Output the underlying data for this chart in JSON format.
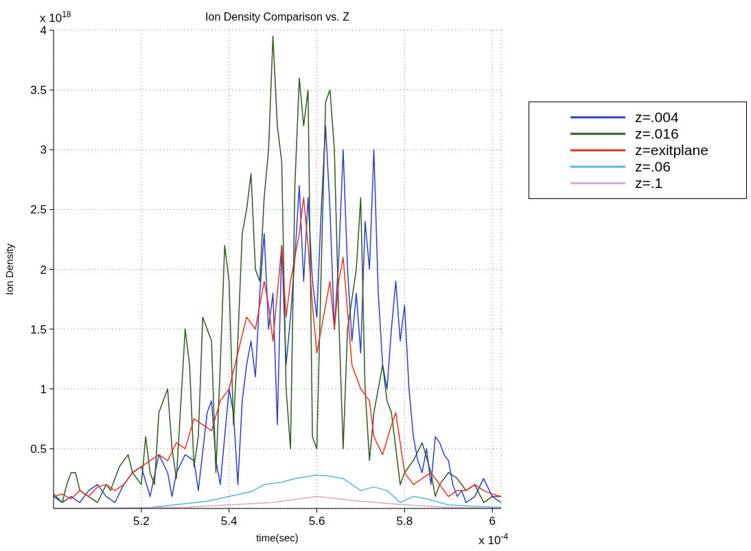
{
  "chart_data": {
    "type": "line",
    "title": "Ion Density Comparison vs. Z",
    "xlabel": "time(sec)",
    "ylabel": "Ion Density",
    "annotations": [
      "x 10$^{18}$",
      "x 10$^{-4}$"
    ],
    "xlim": [
      5.0,
      6.02
    ],
    "xticks": [
      5.2,
      5.4,
      5.6,
      5.8,
      6
    ],
    "ylim": [
      0,
      4
    ],
    "yticks": [
      0.5,
      1,
      1.5,
      2,
      2.5,
      3,
      3.5,
      4
    ],
    "grid": true,
    "legend": "right",
    "marker": "none",
    "line_style": "solid",
    "series": [
      {
        "name": "z=.004",
        "color": "#2a3fd0",
        "x": [
          5.0,
          5.02,
          5.04,
          5.06,
          5.08,
          5.1,
          5.12,
          5.14,
          5.16,
          5.18,
          5.2,
          5.22,
          5.24,
          5.26,
          5.27,
          5.28,
          5.3,
          5.32,
          5.33,
          5.35,
          5.36,
          5.37,
          5.38,
          5.4,
          5.41,
          5.42,
          5.43,
          5.44,
          5.45,
          5.46,
          5.47,
          5.48,
          5.49,
          5.5,
          5.51,
          5.52,
          5.53,
          5.54,
          5.55,
          5.56,
          5.57,
          5.58,
          5.59,
          5.6,
          5.61,
          5.62,
          5.63,
          5.64,
          5.65,
          5.66,
          5.67,
          5.68,
          5.69,
          5.7,
          5.71,
          5.72,
          5.73,
          5.74,
          5.75,
          5.76,
          5.77,
          5.78,
          5.79,
          5.8,
          5.81,
          5.82,
          5.83,
          5.84,
          5.85,
          5.86,
          5.87,
          5.88,
          5.89,
          5.9,
          5.91,
          5.92,
          5.93,
          5.94,
          5.96,
          5.98,
          6.0,
          6.02
        ],
        "values": [
          0.1,
          0.05,
          0.1,
          0.05,
          0.15,
          0.2,
          0.1,
          0.05,
          0.2,
          0.3,
          0.35,
          0.1,
          0.45,
          0.3,
          0.1,
          0.3,
          0.45,
          0.4,
          0.15,
          0.8,
          0.9,
          0.4,
          0.2,
          1.0,
          0.8,
          0.2,
          0.9,
          1.2,
          1.4,
          1.1,
          1.8,
          2.3,
          1.5,
          1.8,
          0.7,
          2.2,
          1.2,
          1.6,
          2.1,
          2.7,
          1.9,
          2.6,
          1.9,
          1.6,
          2.5,
          3.2,
          2.5,
          1.5,
          2.1,
          3.0,
          2.0,
          1.4,
          1.8,
          1.3,
          2.4,
          2.0,
          3.0,
          1.8,
          1.2,
          1.0,
          1.5,
          1.9,
          1.4,
          1.7,
          1.0,
          0.6,
          0.4,
          0.3,
          0.5,
          0.2,
          0.6,
          0.55,
          0.45,
          0.4,
          0.2,
          0.1,
          0.15,
          0.05,
          0.1,
          0.25,
          0.1,
          0.05
        ]
      },
      {
        "name": "z=.016",
        "color": "#2f5a1f",
        "x": [
          5.0,
          5.02,
          5.03,
          5.04,
          5.05,
          5.06,
          5.08,
          5.1,
          5.12,
          5.13,
          5.15,
          5.17,
          5.18,
          5.2,
          5.21,
          5.22,
          5.23,
          5.24,
          5.26,
          5.27,
          5.28,
          5.3,
          5.31,
          5.32,
          5.33,
          5.34,
          5.35,
          5.36,
          5.37,
          5.38,
          5.39,
          5.4,
          5.41,
          5.42,
          5.43,
          5.44,
          5.45,
          5.46,
          5.47,
          5.48,
          5.49,
          5.5,
          5.51,
          5.52,
          5.53,
          5.54,
          5.55,
          5.56,
          5.57,
          5.58,
          5.59,
          5.6,
          5.61,
          5.62,
          5.63,
          5.64,
          5.65,
          5.66,
          5.67,
          5.69,
          5.7,
          5.71,
          5.72,
          5.73,
          5.75,
          5.76,
          5.77,
          5.78,
          5.79,
          5.8,
          5.82,
          5.84,
          5.86,
          5.87,
          5.88,
          5.9,
          5.92,
          5.94,
          5.96,
          5.98,
          6.0,
          6.02
        ],
        "values": [
          0.12,
          0.05,
          0.2,
          0.3,
          0.3,
          0.15,
          0.1,
          0.05,
          0.2,
          0.15,
          0.35,
          0.45,
          0.3,
          0.2,
          0.6,
          0.3,
          0.2,
          0.8,
          1.0,
          0.5,
          0.25,
          1.5,
          1.2,
          0.35,
          0.6,
          1.6,
          1.5,
          1.4,
          0.3,
          1.2,
          2.2,
          1.9,
          0.7,
          1.4,
          2.3,
          2.5,
          2.8,
          2.0,
          1.9,
          2.6,
          3.0,
          3.95,
          3.2,
          2.9,
          1.0,
          0.5,
          2.7,
          3.6,
          3.2,
          3.5,
          0.6,
          0.5,
          2.0,
          3.4,
          3.5,
          3.0,
          1.6,
          0.5,
          1.5,
          2.0,
          2.6,
          1.0,
          0.4,
          0.8,
          1.2,
          0.9,
          0.8,
          0.5,
          0.2,
          0.3,
          0.4,
          0.55,
          0.3,
          0.1,
          0.2,
          0.3,
          0.25,
          0.15,
          0.2,
          0.05,
          0.1,
          0.1
        ]
      },
      {
        "name": "z=exitplane",
        "color": "#e8321e",
        "x": [
          5.0,
          5.02,
          5.04,
          5.06,
          5.08,
          5.1,
          5.12,
          5.14,
          5.16,
          5.18,
          5.2,
          5.22,
          5.24,
          5.26,
          5.28,
          5.3,
          5.32,
          5.34,
          5.36,
          5.38,
          5.4,
          5.42,
          5.44,
          5.46,
          5.48,
          5.49,
          5.5,
          5.52,
          5.53,
          5.54,
          5.56,
          5.57,
          5.58,
          5.59,
          5.6,
          5.62,
          5.63,
          5.64,
          5.65,
          5.66,
          5.68,
          5.7,
          5.72,
          5.73,
          5.75,
          5.77,
          5.78,
          5.8,
          5.82,
          5.84,
          5.86,
          5.88,
          5.9,
          5.92,
          5.94,
          5.96,
          5.98,
          6.0,
          6.02
        ],
        "values": [
          0.1,
          0.12,
          0.08,
          0.15,
          0.1,
          0.18,
          0.2,
          0.15,
          0.2,
          0.3,
          0.35,
          0.4,
          0.45,
          0.4,
          0.55,
          0.5,
          0.75,
          0.7,
          0.65,
          0.9,
          1.0,
          1.3,
          1.6,
          1.5,
          1.9,
          1.7,
          1.4,
          2.2,
          1.6,
          1.9,
          2.3,
          2.6,
          2.2,
          1.7,
          1.3,
          1.7,
          1.9,
          1.5,
          1.9,
          2.1,
          1.2,
          1.0,
          0.9,
          0.6,
          0.45,
          0.7,
          0.8,
          0.3,
          0.2,
          0.25,
          0.3,
          0.2,
          0.1,
          0.15,
          0.15,
          0.2,
          0.15,
          0.12,
          0.1
        ]
      },
      {
        "name": "z=.06",
        "color": "#5ab4d6",
        "x": [
          5.0,
          5.2,
          5.25,
          5.3,
          5.35,
          5.4,
          5.45,
          5.48,
          5.52,
          5.55,
          5.6,
          5.63,
          5.66,
          5.7,
          5.73,
          5.76,
          5.79,
          5.82,
          5.85,
          5.9,
          5.95,
          6.02
        ],
        "values": [
          0,
          0,
          0.02,
          0.04,
          0.06,
          0.1,
          0.14,
          0.2,
          0.22,
          0.25,
          0.28,
          0.27,
          0.25,
          0.15,
          0.18,
          0.15,
          0.05,
          0.1,
          0.08,
          0.03,
          0.02,
          0.01
        ]
      },
      {
        "name": "z=.1",
        "color": "#d6a8c4",
        "x": [
          5.0,
          5.3,
          5.5,
          5.6,
          5.7,
          5.8,
          5.9,
          6.02
        ],
        "values": [
          0,
          0.01,
          0.05,
          0.1,
          0.06,
          0.03,
          0.01,
          0
        ]
      }
    ]
  }
}
